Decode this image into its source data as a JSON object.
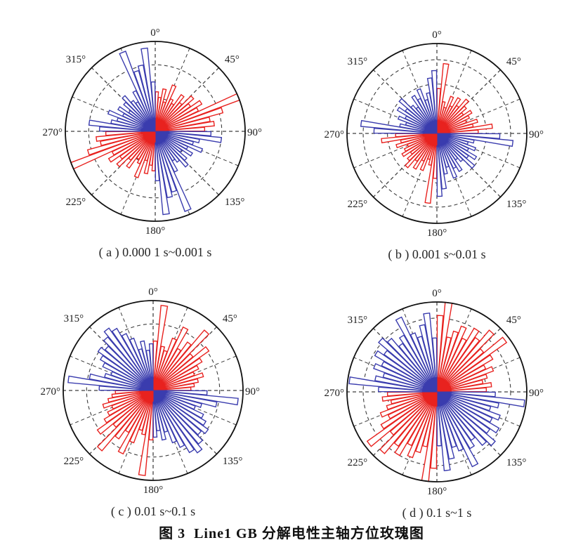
{
  "figure_title": "图 3  Line1 GB 分解电性主轴方位玫瑰图",
  "colors": {
    "red_series": "#e8221f",
    "blue_series": "#3a3cae",
    "grid": "#3d3d3d",
    "outer_circle": "#111111",
    "angle_label": "#1c1c1c"
  },
  "angular_axis": {
    "labels": [
      "0°",
      "45°",
      "90°",
      "135°",
      "180°",
      "225°",
      "270°",
      "315°"
    ],
    "label_step_deg": 45,
    "grid_spoke_step_deg": 22.5,
    "zero_at": "top",
    "clockwise": true
  },
  "chart_data": [
    {
      "type": "rose",
      "panel": "a",
      "caption": "( a ) 0.000 1 s~0.001 s",
      "bin_width_deg": 5,
      "mirrored_180": true,
      "rings_fraction_of_R": [
        0.37,
        0.74
      ],
      "center_blob_radius": 0.12,
      "red_bins_start_deg": 0,
      "red": [
        0.44,
        0.38,
        0.48,
        0.34,
        0.55,
        0.4,
        0.36,
        0.5,
        0.42,
        0.56,
        0.48,
        0.6,
        0.53,
        1.0,
        0.78,
        0.62,
        0.66,
        0.55
      ],
      "blue_bins_start_deg": 90,
      "blue": [
        0.62,
        0.74,
        0.5,
        0.44,
        0.56,
        0.4,
        0.48,
        0.36,
        0.46,
        0.52,
        0.42,
        0.38,
        0.5,
        0.95,
        0.7,
        0.75,
        0.93,
        0.55
      ]
    },
    {
      "type": "rose",
      "panel": "b",
      "caption": "( b ) 0.001 s~0.01 s",
      "bin_width_deg": 5,
      "mirrored_180": true,
      "rings_fraction_of_R": [
        0.28,
        0.55,
        0.82
      ],
      "center_blob_radius": 0.13,
      "red_bins_start_deg": 0,
      "red": [
        0.5,
        0.78,
        0.36,
        0.3,
        0.44,
        0.34,
        0.46,
        0.38,
        0.5,
        0.43,
        0.36,
        0.45,
        0.4,
        0.35,
        0.47,
        0.41,
        0.62,
        0.46
      ],
      "blue_bins_start_deg": 90,
      "blue": [
        0.7,
        0.85,
        0.42,
        0.36,
        0.46,
        0.39,
        0.51,
        0.43,
        0.55,
        0.41,
        0.36,
        0.49,
        0.43,
        0.53,
        0.39,
        0.46,
        0.62,
        0.7
      ]
    },
    {
      "type": "rose",
      "panel": "c",
      "caption": "( c ) 0.01 s~0.1 s",
      "bin_width_deg": 5,
      "mirrored_180": true,
      "rings_fraction_of_R": [
        0.37,
        0.74
      ],
      "center_blob_radius": 0.12,
      "red_bins_start_deg": 0,
      "red": [
        0.55,
        0.95,
        0.5,
        0.46,
        0.62,
        0.78,
        0.54,
        0.66,
        0.88,
        0.58,
        0.76,
        0.63,
        0.56,
        0.49,
        0.58,
        0.51,
        0.46,
        0.42
      ],
      "blue_bins_start_deg": 90,
      "blue": [
        0.6,
        0.95,
        0.72,
        0.56,
        0.5,
        0.62,
        0.68,
        0.75,
        0.7,
        0.78,
        0.85,
        0.8,
        0.7,
        0.62,
        0.48,
        0.56,
        0.45,
        0.52
      ]
    },
    {
      "type": "rose",
      "panel": "d",
      "caption": "( d ) 0.1 s~1 s",
      "bin_width_deg": 5,
      "mirrored_180": true,
      "rings_fraction_of_R": [
        0.28,
        0.55,
        0.82
      ],
      "center_blob_radius": 0.16,
      "red_bins_start_deg": 0,
      "red": [
        0.85,
        1.0,
        0.62,
        0.7,
        0.78,
        0.66,
        0.82,
        0.74,
        0.9,
        0.68,
        0.95,
        0.72,
        0.6,
        0.67,
        0.58,
        0.52,
        0.61,
        0.55
      ],
      "blue_bins_start_deg": 90,
      "blue": [
        0.65,
        0.98,
        0.7,
        0.62,
        0.75,
        0.68,
        0.8,
        0.72,
        0.85,
        0.78,
        0.66,
        0.73,
        0.92,
        0.7,
        0.64,
        0.76,
        0.88,
        0.6
      ]
    }
  ]
}
